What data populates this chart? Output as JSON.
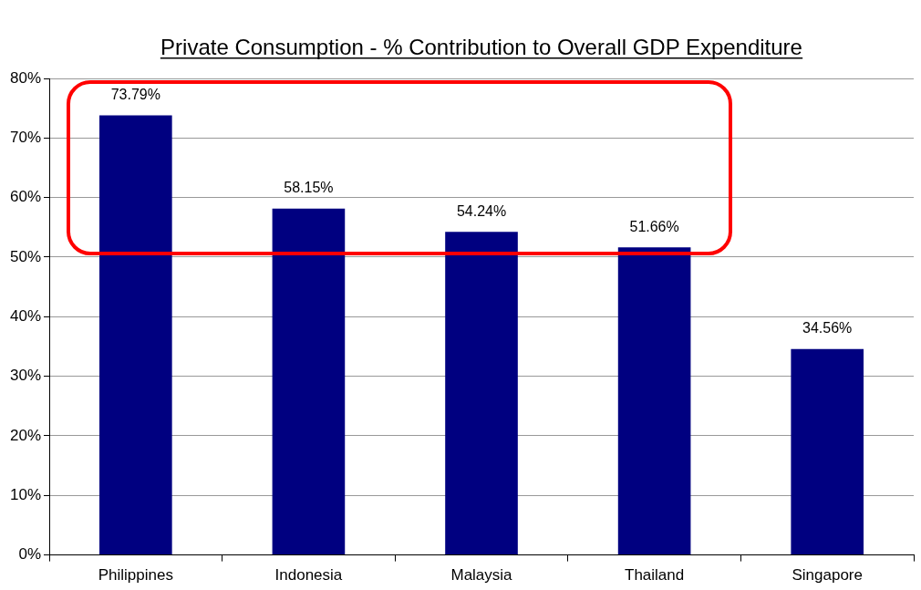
{
  "chart_data": {
    "type": "bar",
    "title": "Private Consumption - % Contribution to Overall GDP Expenditure",
    "categories": [
      "Philippines",
      "Indonesia",
      "Malaysia",
      "Thailand",
      "Singapore"
    ],
    "values": [
      73.79,
      58.15,
      54.24,
      51.66,
      34.56
    ],
    "value_labels": [
      "73.79%",
      "58.15%",
      "54.24%",
      "51.66%",
      "34.56%"
    ],
    "color": "#000080",
    "ylim": [
      0,
      80
    ],
    "yticks": [
      {
        "value": 0,
        "label": "0%"
      },
      {
        "value": 10,
        "label": "10%"
      },
      {
        "value": 20,
        "label": "20%"
      },
      {
        "value": 30,
        "label": "30%"
      },
      {
        "value": 40,
        "label": "40%"
      },
      {
        "value": 50,
        "label": "50%"
      },
      {
        "value": 60,
        "label": "60%"
      },
      {
        "value": 70,
        "label": "70%"
      },
      {
        "value": 80,
        "label": "80%"
      }
    ],
    "grid": "y",
    "legend": false
  }
}
